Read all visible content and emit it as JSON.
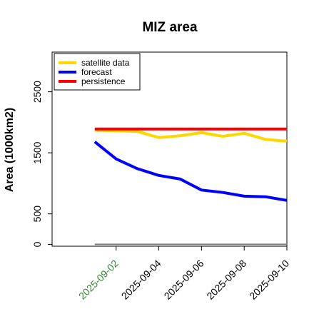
{
  "chart_data": {
    "type": "line",
    "title": "MIZ area",
    "ylabel": "Area (1000km2)",
    "xlabel": "",
    "x": [
      "2025-09-01",
      "2025-09-02",
      "2025-09-03",
      "2025-09-04",
      "2025-09-05",
      "2025-09-06",
      "2025-09-07",
      "2025-09-08",
      "2025-09-09",
      "2025-09-10"
    ],
    "xticks": [
      "2025-09-02",
      "2025-09-04",
      "2025-09-06",
      "2025-09-08",
      "2025-09-10"
    ],
    "xtick_colors": [
      "#2e8b2e",
      "#000000",
      "#000000",
      "#000000",
      "#000000"
    ],
    "xlim": [
      "2025-08-30",
      "2025-09-10"
    ],
    "yticks": [
      0,
      500,
      1500,
      2500
    ],
    "ylim": [
      -30,
      3150
    ],
    "baseline": 0,
    "legend": "top-left",
    "series": [
      {
        "name": "satellite data",
        "color": "#ffd700",
        "values": [
          1870,
          1860,
          1850,
          1750,
          1780,
          1830,
          1770,
          1820,
          1720,
          1690
        ]
      },
      {
        "name": "forecast",
        "color": "#0000ff",
        "values": [
          1680,
          1400,
          1240,
          1130,
          1070,
          890,
          850,
          790,
          780,
          720
        ]
      },
      {
        "name": "persistence",
        "color": "#ff0000",
        "values": [
          1890,
          1890,
          1890,
          1890,
          1890,
          1890,
          1890,
          1890,
          1890,
          1890
        ]
      }
    ]
  }
}
